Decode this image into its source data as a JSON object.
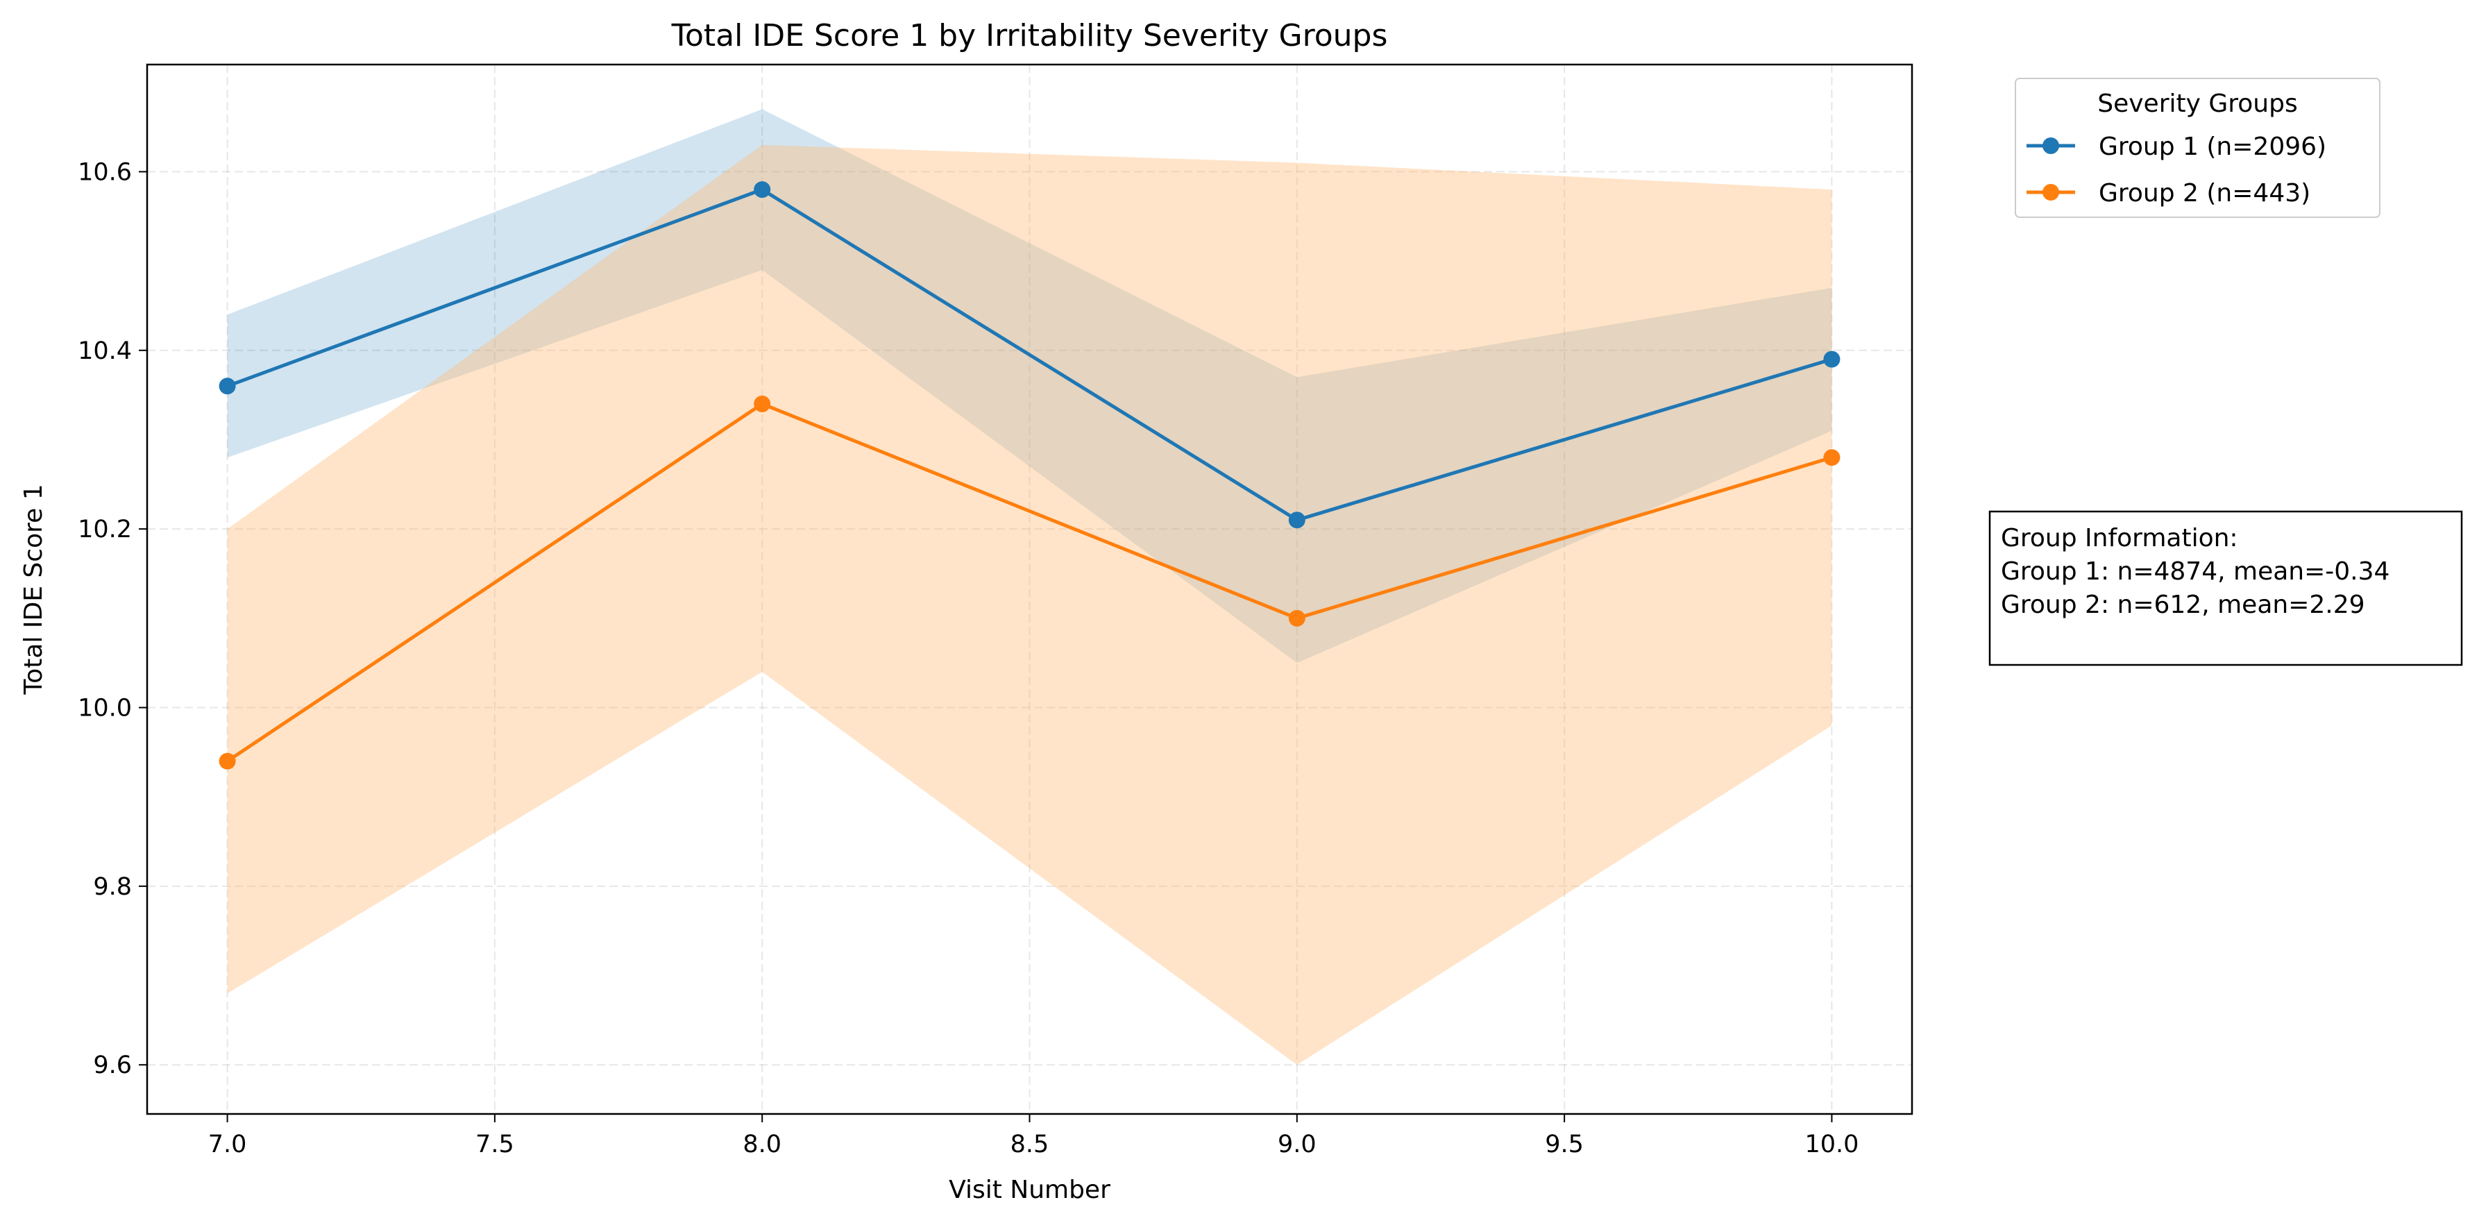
{
  "chart_data": {
    "type": "line",
    "title": "Total IDE Score 1 by Irritability Severity Groups",
    "xlabel": "Visit Number",
    "ylabel": "Total IDE Score 1",
    "xlim": [
      6.85,
      10.15
    ],
    "ylim": [
      9.545,
      10.72
    ],
    "x_ticks": [
      {
        "value": 7.0,
        "label": "7.0"
      },
      {
        "value": 7.5,
        "label": "7.5"
      },
      {
        "value": 8.0,
        "label": "8.0"
      },
      {
        "value": 8.5,
        "label": "8.5"
      },
      {
        "value": 9.0,
        "label": "9.0"
      },
      {
        "value": 9.5,
        "label": "9.5"
      },
      {
        "value": 10.0,
        "label": "10.0"
      }
    ],
    "y_ticks": [
      {
        "value": 9.6,
        "label": "9.6"
      },
      {
        "value": 9.8,
        "label": "9.8"
      },
      {
        "value": 10.0,
        "label": "10.0"
      },
      {
        "value": 10.2,
        "label": "10.2"
      },
      {
        "value": 10.4,
        "label": "10.4"
      },
      {
        "value": 10.6,
        "label": "10.6"
      }
    ],
    "grid": true,
    "x": [
      7,
      8,
      9,
      10
    ],
    "series": [
      {
        "name": "Group 1 (n=2096)",
        "color": "#1f77b4",
        "band_color": "#1f77b4",
        "band_opacity": 0.2,
        "values": [
          10.36,
          10.58,
          10.21,
          10.39
        ],
        "lower": [
          10.28,
          10.49,
          10.05,
          10.31
        ],
        "upper": [
          10.44,
          10.67,
          10.37,
          10.47
        ]
      },
      {
        "name": "Group 2 (n=443)",
        "color": "#ff7f0e",
        "band_color": "#ffbb78",
        "band_opacity": 0.4,
        "values": [
          9.94,
          10.34,
          10.1,
          10.28
        ],
        "lower": [
          9.68,
          10.04,
          9.6,
          9.98
        ],
        "upper": [
          10.2,
          10.63,
          10.61,
          10.58
        ]
      }
    ],
    "legend": {
      "title": "Severity Groups",
      "placement": "outside-upper-right"
    },
    "info_box": {
      "lines": [
        "Group Information:",
        "Group 1: n=4874, mean=-0.34",
        "Group 2: n=612, mean=2.29"
      ]
    }
  }
}
